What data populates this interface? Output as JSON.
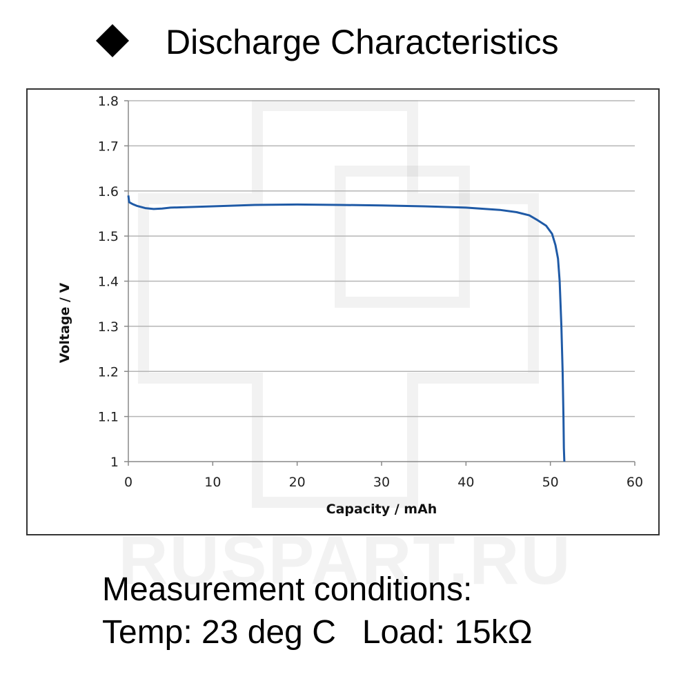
{
  "header": {
    "title": "Discharge Characteristics"
  },
  "watermark": "RUSPART.RU",
  "conditions": {
    "line1": "Measurement conditions:",
    "temp_label": "Temp: 23 deg C",
    "load_label": "Load: 15kΩ"
  },
  "chart_data": {
    "type": "line",
    "xlabel": "Capacity  /  mAh",
    "ylabel": "Voltage  /  V",
    "xlim": [
      0,
      60
    ],
    "ylim": [
      1.0,
      1.8
    ],
    "xticks": [
      "0",
      "10",
      "20",
      "30",
      "40",
      "50",
      "60"
    ],
    "yticks": [
      "1",
      "1.1",
      "1.2",
      "1.3",
      "1.4",
      "1.5",
      "1.6",
      "1.7",
      "1.8"
    ],
    "grid": "horizontal",
    "color": "#1f5aa6",
    "series": [
      {
        "x": [
          0,
          0.1,
          0.5,
          1,
          2,
          3,
          4,
          5,
          10,
          15,
          20,
          25,
          30,
          35,
          40,
          44,
          46,
          47.5,
          48.5,
          49.5,
          50.2,
          50.6,
          50.9,
          51.1,
          51.3,
          51.45,
          51.55,
          51.6,
          51.65
        ],
        "y": [
          1.59,
          1.575,
          1.571,
          1.567,
          1.562,
          1.56,
          1.561,
          1.563,
          1.566,
          1.569,
          1.57,
          1.569,
          1.568,
          1.566,
          1.563,
          1.558,
          1.553,
          1.546,
          1.535,
          1.523,
          1.505,
          1.48,
          1.45,
          1.4,
          1.3,
          1.2,
          1.1,
          1.03,
          1.0
        ]
      }
    ]
  }
}
